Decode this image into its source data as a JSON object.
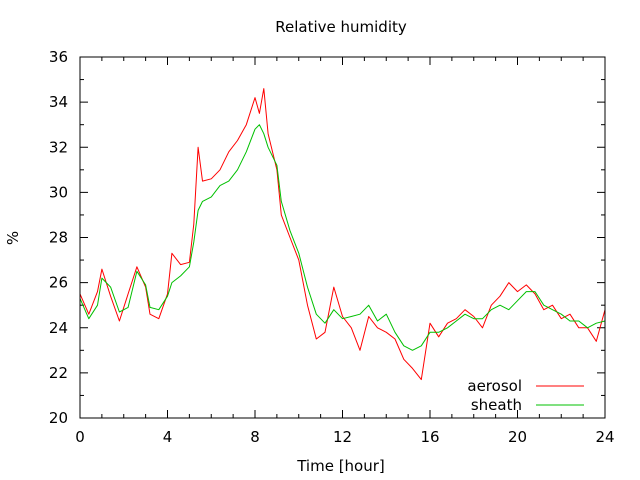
{
  "chart_data": {
    "type": "line",
    "title": "Relative humidity",
    "xlabel": "Time [hour]",
    "ylabel": "%",
    "xlim": [
      0,
      24
    ],
    "ylim": [
      20,
      36
    ],
    "x_ticks": [
      "0",
      "4",
      "8",
      "12",
      "16",
      "20",
      "24"
    ],
    "y_ticks": [
      "20",
      "22",
      "24",
      "26",
      "28",
      "30",
      "32",
      "34",
      "36"
    ],
    "grid": false,
    "legend_position": "bottom-right",
    "series": [
      {
        "name": "aerosol",
        "color": "#ff0000",
        "points": [
          [
            0.0,
            25.5
          ],
          [
            0.4,
            24.6
          ],
          [
            0.8,
            25.6
          ],
          [
            1.0,
            26.6
          ],
          [
            1.4,
            25.4
          ],
          [
            1.8,
            24.3
          ],
          [
            2.2,
            25.5
          ],
          [
            2.6,
            26.7
          ],
          [
            3.0,
            25.8
          ],
          [
            3.2,
            24.6
          ],
          [
            3.6,
            24.4
          ],
          [
            4.0,
            25.5
          ],
          [
            4.2,
            27.3
          ],
          [
            4.6,
            26.8
          ],
          [
            5.0,
            26.9
          ],
          [
            5.2,
            28.6
          ],
          [
            5.4,
            32.0
          ],
          [
            5.6,
            30.5
          ],
          [
            6.0,
            30.6
          ],
          [
            6.4,
            31.0
          ],
          [
            6.8,
            31.8
          ],
          [
            7.2,
            32.3
          ],
          [
            7.6,
            33.0
          ],
          [
            8.0,
            34.2
          ],
          [
            8.2,
            33.5
          ],
          [
            8.4,
            34.6
          ],
          [
            8.6,
            32.6
          ],
          [
            9.0,
            31.0
          ],
          [
            9.2,
            29.0
          ],
          [
            9.6,
            28.0
          ],
          [
            10.0,
            27.0
          ],
          [
            10.4,
            25.0
          ],
          [
            10.8,
            23.5
          ],
          [
            11.2,
            23.8
          ],
          [
            11.6,
            25.8
          ],
          [
            12.0,
            24.5
          ],
          [
            12.4,
            24.0
          ],
          [
            12.8,
            23.0
          ],
          [
            13.2,
            24.5
          ],
          [
            13.6,
            24.0
          ],
          [
            14.0,
            23.8
          ],
          [
            14.4,
            23.5
          ],
          [
            14.8,
            22.6
          ],
          [
            15.2,
            22.2
          ],
          [
            15.6,
            21.7
          ],
          [
            16.0,
            24.2
          ],
          [
            16.4,
            23.6
          ],
          [
            16.8,
            24.2
          ],
          [
            17.2,
            24.4
          ],
          [
            17.6,
            24.8
          ],
          [
            18.0,
            24.5
          ],
          [
            18.4,
            24.0
          ],
          [
            18.8,
            25.0
          ],
          [
            19.2,
            25.4
          ],
          [
            19.6,
            26.0
          ],
          [
            20.0,
            25.6
          ],
          [
            20.4,
            25.9
          ],
          [
            20.8,
            25.5
          ],
          [
            21.2,
            24.8
          ],
          [
            21.6,
            25.0
          ],
          [
            22.0,
            24.4
          ],
          [
            22.4,
            24.6
          ],
          [
            22.8,
            24.0
          ],
          [
            23.2,
            24.0
          ],
          [
            23.6,
            23.4
          ],
          [
            24.0,
            24.8
          ]
        ]
      },
      {
        "name": "sheath",
        "color": "#00c000",
        "points": [
          [
            0.0,
            25.3
          ],
          [
            0.4,
            24.4
          ],
          [
            0.8,
            25.0
          ],
          [
            1.0,
            26.2
          ],
          [
            1.4,
            25.8
          ],
          [
            1.8,
            24.7
          ],
          [
            2.2,
            24.9
          ],
          [
            2.6,
            26.5
          ],
          [
            3.0,
            25.9
          ],
          [
            3.2,
            24.9
          ],
          [
            3.6,
            24.8
          ],
          [
            4.0,
            25.4
          ],
          [
            4.2,
            26.0
          ],
          [
            4.6,
            26.3
          ],
          [
            5.0,
            26.7
          ],
          [
            5.2,
            27.8
          ],
          [
            5.4,
            29.2
          ],
          [
            5.6,
            29.6
          ],
          [
            6.0,
            29.8
          ],
          [
            6.4,
            30.3
          ],
          [
            6.8,
            30.5
          ],
          [
            7.2,
            31.0
          ],
          [
            7.6,
            31.8
          ],
          [
            8.0,
            32.8
          ],
          [
            8.2,
            33.0
          ],
          [
            8.4,
            32.6
          ],
          [
            8.6,
            32.0
          ],
          [
            9.0,
            31.2
          ],
          [
            9.2,
            29.6
          ],
          [
            9.6,
            28.3
          ],
          [
            10.0,
            27.3
          ],
          [
            10.4,
            25.8
          ],
          [
            10.8,
            24.6
          ],
          [
            11.2,
            24.2
          ],
          [
            11.6,
            24.8
          ],
          [
            12.0,
            24.4
          ],
          [
            12.4,
            24.5
          ],
          [
            12.8,
            24.6
          ],
          [
            13.2,
            25.0
          ],
          [
            13.6,
            24.3
          ],
          [
            14.0,
            24.6
          ],
          [
            14.4,
            23.8
          ],
          [
            14.8,
            23.2
          ],
          [
            15.2,
            23.0
          ],
          [
            15.6,
            23.2
          ],
          [
            16.0,
            23.8
          ],
          [
            16.4,
            23.8
          ],
          [
            16.8,
            24.0
          ],
          [
            17.2,
            24.3
          ],
          [
            17.6,
            24.6
          ],
          [
            18.0,
            24.4
          ],
          [
            18.4,
            24.4
          ],
          [
            18.8,
            24.8
          ],
          [
            19.2,
            25.0
          ],
          [
            19.6,
            24.8
          ],
          [
            20.0,
            25.2
          ],
          [
            20.4,
            25.6
          ],
          [
            20.8,
            25.6
          ],
          [
            21.2,
            25.0
          ],
          [
            21.6,
            24.8
          ],
          [
            22.0,
            24.6
          ],
          [
            22.4,
            24.3
          ],
          [
            22.8,
            24.3
          ],
          [
            23.2,
            24.0
          ],
          [
            23.6,
            24.2
          ],
          [
            24.0,
            24.3
          ]
        ]
      }
    ]
  }
}
